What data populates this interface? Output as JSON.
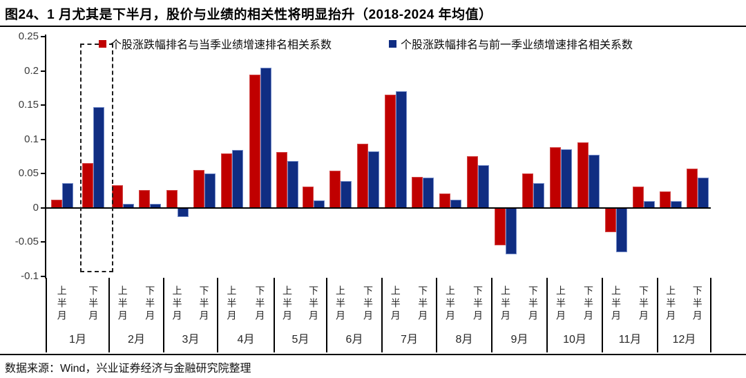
{
  "title": "图24、1 月尤其是下半月，股价与业绩的相关性将明显抬升（2018-2024 年均值）",
  "footer": {
    "source": "数据来源：Wind，兴业证券经济与金融研究院整理"
  },
  "colors": {
    "red": "#C00000",
    "blue": "#102D82",
    "axis": "#000000"
  },
  "chart_data": {
    "type": "bar",
    "title": "图24、1 月尤其是下半月，股价与业绩的相关性将明显抬升（2018-2024 年均值）",
    "months": [
      "1月",
      "2月",
      "3月",
      "4月",
      "5月",
      "6月",
      "7月",
      "8月",
      "9月",
      "10月",
      "11月",
      "12月"
    ],
    "halves": [
      "上半月",
      "下半月"
    ],
    "categories": [
      "1月上半月",
      "1月下半月",
      "2月上半月",
      "2月下半月",
      "3月上半月",
      "3月下半月",
      "4月上半月",
      "4月下半月",
      "5月上半月",
      "5月下半月",
      "6月上半月",
      "6月下半月",
      "7月上半月",
      "7月下半月",
      "8月上半月",
      "8月下半月",
      "9月上半月",
      "9月下半月",
      "10月上半月",
      "10月下半月",
      "11月上半月",
      "11月下半月",
      "12月上半月",
      "12月下半月"
    ],
    "series": [
      {
        "name": "个股涨跌幅排名与当季业绩增速排名相关系数",
        "color": "#C00000",
        "values": [
          0.012,
          0.065,
          0.033,
          0.026,
          0.026,
          0.055,
          0.08,
          0.195,
          0.082,
          0.031,
          0.054,
          0.094,
          0.165,
          0.045,
          0.021,
          0.076,
          -0.055,
          0.05,
          0.089,
          0.096,
          -0.035,
          0.031,
          0.024,
          0.057
        ]
      },
      {
        "name": "个股涨跌幅排名与前一季业绩增速排名相关系数",
        "color": "#102D82",
        "values": [
          0.036,
          0.147,
          0.006,
          0.006,
          -0.013,
          0.05,
          0.085,
          0.205,
          0.068,
          0.011,
          0.039,
          0.083,
          0.17,
          0.044,
          0.012,
          0.062,
          -0.068,
          0.036,
          0.086,
          0.078,
          -0.065,
          0.01,
          0.01,
          0.044
        ]
      }
    ],
    "ylim": [
      -0.1,
      0.25
    ],
    "yticks": [
      "0.25",
      "0.2",
      "0.15",
      "0.1",
      "0.05",
      "0",
      "-0.05",
      "-0.1"
    ],
    "grid": false,
    "legend_position": "top",
    "annotation": {
      "type": "dashed-highlight-box",
      "target": "1月下半月"
    }
  }
}
